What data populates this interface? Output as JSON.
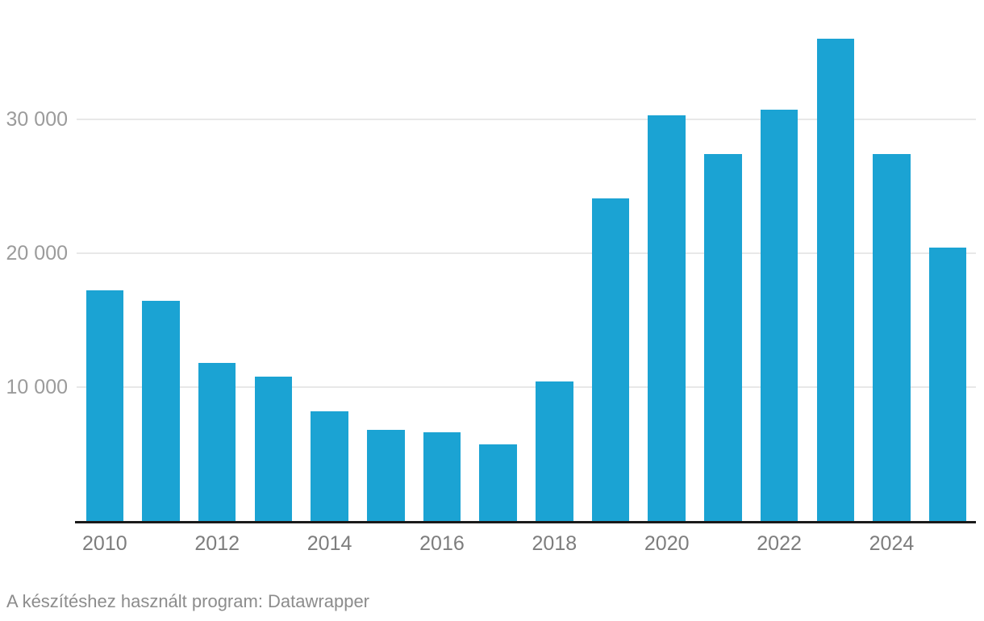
{
  "chart_data": {
    "type": "bar",
    "categories": [
      "2010",
      "2011",
      "2012",
      "2013",
      "2014",
      "2015",
      "2016",
      "2017",
      "2018",
      "2019",
      "2020",
      "2021",
      "2022",
      "2023",
      "2024",
      "2025"
    ],
    "values": [
      17200,
      16400,
      11800,
      10800,
      8200,
      6800,
      6600,
      5700,
      10400,
      24100,
      30300,
      27400,
      30700,
      36000,
      27400,
      20400
    ],
    "x_tick_labels": [
      "2010",
      "2012",
      "2014",
      "2016",
      "2018",
      "2020",
      "2022",
      "2024"
    ],
    "y_ticks": [
      {
        "value": 10000,
        "label": "10 000"
      },
      {
        "value": 20000,
        "label": "20 000"
      },
      {
        "value": 30000,
        "label": "30 000"
      }
    ],
    "ylim": [
      0,
      37500
    ],
    "grid": "horizontal",
    "legend": "none"
  },
  "colors": {
    "bar": "#1ba3d3",
    "gridline": "#e8e8e8",
    "axis_line": "#1a1a1a",
    "y_tick_label": "#9b9b9b",
    "x_tick_label": "#7d7d7d",
    "footer_text": "#8c8c8c",
    "background": "#ffffff"
  },
  "footer": {
    "text": "A készítéshez használt program: Datawrapper"
  }
}
